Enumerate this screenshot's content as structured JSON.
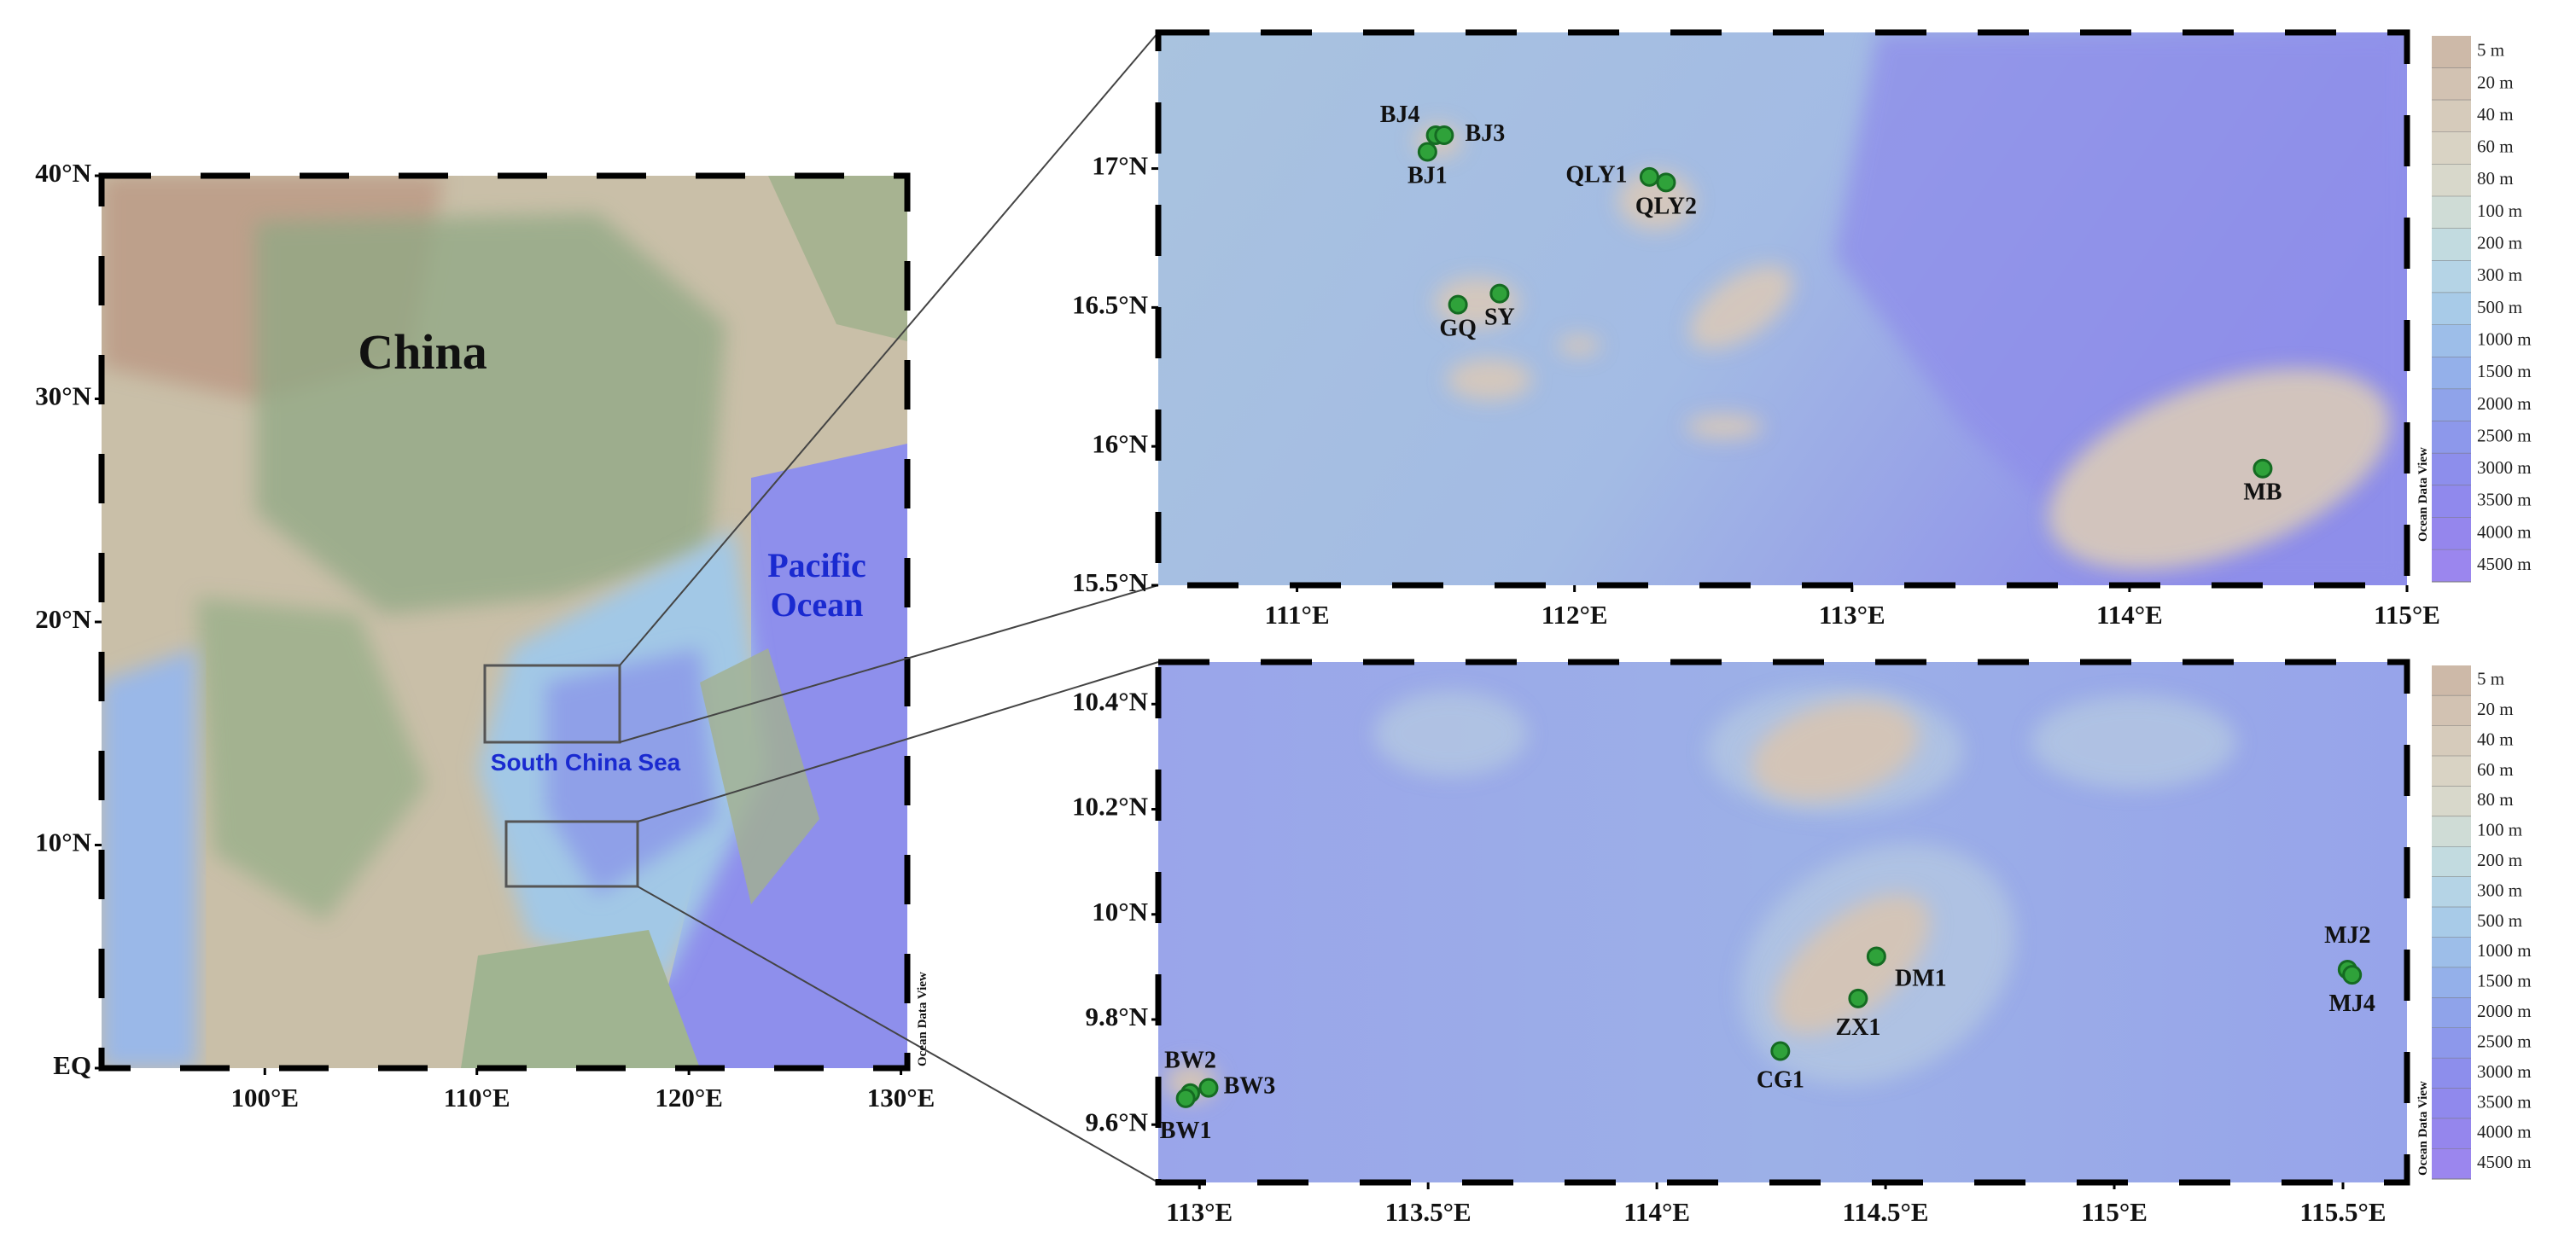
{
  "overview": {
    "xticks": [
      {
        "value": 100,
        "label": "100°E"
      },
      {
        "value": 110,
        "label": "110°E"
      },
      {
        "value": 120,
        "label": "120°E"
      },
      {
        "value": 130,
        "label": "130°E"
      }
    ],
    "yticks": [
      {
        "value": 0,
        "label": "EQ"
      },
      {
        "value": 10,
        "label": "10°N"
      },
      {
        "value": 20,
        "label": "20°N"
      },
      {
        "value": 30,
        "label": "30°N"
      },
      {
        "value": 40,
        "label": "40°N"
      }
    ],
    "xlim": [
      92.3,
      130.3
    ],
    "ylim": [
      0,
      40
    ],
    "labels": {
      "china": "China",
      "pacific": [
        "Pacific",
        "Ocean"
      ],
      "scs": "South China Sea"
    }
  },
  "credit": "Ocean Data View",
  "depth_scale": {
    "labels": [
      "5 m",
      "20 m",
      "40 m",
      "60 m",
      "80 m",
      "100 m",
      "200 m",
      "300 m",
      "500 m",
      "1000 m",
      "1500 m",
      "2000 m",
      "2500 m",
      "3000 m",
      "3500 m",
      "4000 m",
      "4500 m"
    ],
    "colors": [
      "#cdb9a8",
      "#d2c2b2",
      "#d6cbbb",
      "#d9d3c4",
      "#d8d8cb",
      "#cfdcd6",
      "#c2dbe0",
      "#b5d4e6",
      "#a8cbe8",
      "#9dbee9",
      "#94b0ea",
      "#8fa3ea",
      "#8d98eb",
      "#8d8eec",
      "#9089ed",
      "#9586ed",
      "#9b86ee"
    ]
  },
  "panels": [
    {
      "xticks": [
        {
          "value": 111,
          "label": "111°E"
        },
        {
          "value": 112,
          "label": "112°E"
        },
        {
          "value": 113,
          "label": "113°E"
        },
        {
          "value": 114,
          "label": "114°E"
        },
        {
          "value": 115,
          "label": "115°E"
        }
      ],
      "yticks": [
        {
          "value": 15.5,
          "label": "15.5°N"
        },
        {
          "value": 16,
          "label": "16°N"
        },
        {
          "value": 16.5,
          "label": "16.5°N"
        },
        {
          "value": 17,
          "label": "17°N"
        }
      ],
      "xlim": [
        110.5,
        115
      ],
      "ylim": [
        15.5,
        17.49
      ],
      "stations": [
        {
          "name": "BJ4",
          "lon": 111.5,
          "lat": 17.12
        },
        {
          "name": "BJ3",
          "lon": 111.53,
          "lat": 17.12
        },
        {
          "name": "BJ1",
          "lon": 111.47,
          "lat": 17.06
        },
        {
          "name": "QLY1",
          "lon": 112.27,
          "lat": 16.97
        },
        {
          "name": "QLY2",
          "lon": 112.33,
          "lat": 16.95
        },
        {
          "name": "GQ",
          "lon": 111.58,
          "lat": 16.51
        },
        {
          "name": "SY",
          "lon": 111.73,
          "lat": 16.55
        },
        {
          "name": "MB",
          "lon": 114.48,
          "lat": 15.92
        }
      ]
    },
    {
      "xticks": [
        {
          "value": 113,
          "label": "113°E"
        },
        {
          "value": 113.5,
          "label": "113.5°E"
        },
        {
          "value": 114,
          "label": "114°E"
        },
        {
          "value": 114.5,
          "label": "114.5°E"
        },
        {
          "value": 115,
          "label": "115°E"
        },
        {
          "value": 115.5,
          "label": "115.5°E"
        }
      ],
      "yticks": [
        {
          "value": 9.6,
          "label": "9.6°N"
        },
        {
          "value": 9.8,
          "label": "9.8°N"
        },
        {
          "value": 10,
          "label": "10°N"
        },
        {
          "value": 10.2,
          "label": "10.2°N"
        },
        {
          "value": 10.4,
          "label": "10.4°N"
        }
      ],
      "xlim": [
        112.91,
        115.64
      ],
      "ylim": [
        9.49,
        10.48
      ],
      "stations": [
        {
          "name": "BW2",
          "lon": 112.98,
          "lat": 9.66
        },
        {
          "name": "BW3",
          "lon": 113.02,
          "lat": 9.67
        },
        {
          "name": "BW1",
          "lon": 112.97,
          "lat": 9.65
        },
        {
          "name": "CG1",
          "lon": 114.27,
          "lat": 9.74
        },
        {
          "name": "ZX1",
          "lon": 114.44,
          "lat": 9.84
        },
        {
          "name": "DM1",
          "lon": 114.48,
          "lat": 9.92
        },
        {
          "name": "MJ2",
          "lon": 115.51,
          "lat": 9.895
        },
        {
          "name": "MJ4",
          "lon": 115.52,
          "lat": 9.885
        }
      ]
    }
  ]
}
